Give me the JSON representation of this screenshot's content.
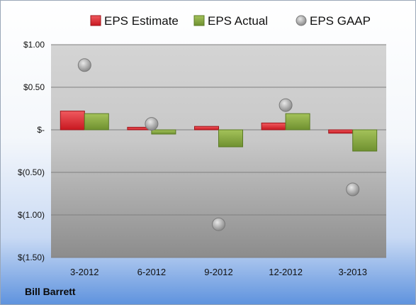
{
  "chart_data": {
    "type": "bar",
    "categories": [
      "3-2012",
      "6-2012",
      "9-2012",
      "12-2012",
      "3-2013"
    ],
    "series": [
      {
        "name": "EPS Estimate",
        "kind": "bar",
        "color": "#e0232b",
        "values": [
          0.22,
          0.03,
          0.04,
          0.08,
          -0.04
        ]
      },
      {
        "name": "EPS Actual",
        "kind": "bar",
        "color": "#86ab3d",
        "values": [
          0.19,
          -0.05,
          -0.2,
          0.19,
          -0.25
        ]
      },
      {
        "name": "EPS GAAP",
        "kind": "scatter",
        "color": "#a9a9a9",
        "values": [
          0.76,
          0.07,
          -1.11,
          0.29,
          -0.7
        ]
      }
    ],
    "y_ticks": [
      {
        "value": 1.0,
        "label": "$1.00"
      },
      {
        "value": 0.5,
        "label": "$0.50"
      },
      {
        "value": 0.0,
        "label": "$-"
      },
      {
        "value": -0.5,
        "label": "$(0.50)"
      },
      {
        "value": -1.0,
        "label": "$(1.00)"
      },
      {
        "value": -1.5,
        "label": "$(1.50)"
      }
    ],
    "ylim": [
      -1.5,
      1.0
    ],
    "grid": true,
    "legend_position": "top"
  },
  "company": "Bill Barrett"
}
